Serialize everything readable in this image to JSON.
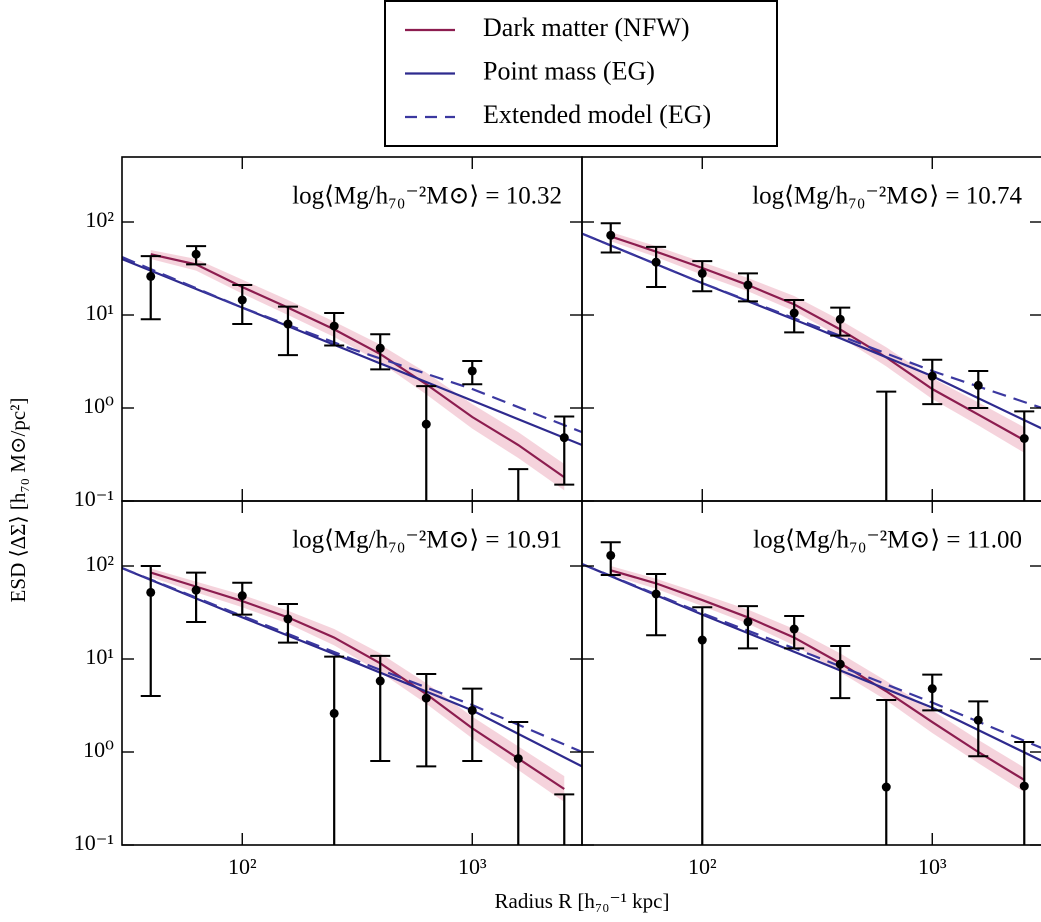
{
  "figure": {
    "xlabel": "Radius R [h₇₀⁻¹ kpc]",
    "ylabel": "ESD ⟨ΔΣ⟩ [h₇₀ M⊙/pc²]"
  },
  "chart_data": [
    {
      "type": "errorbar-model",
      "annotation": "log⟨Mg/h₇₀⁻²M⊙⟩ = 10.32",
      "xscale": "log",
      "yscale": "log",
      "xlim": [
        30,
        3000
      ],
      "ylim": [
        0.1,
        500
      ],
      "xticks": [
        100,
        1000
      ],
      "yticks": [
        {
          "value": 0.1,
          "label": "10⁻¹"
        },
        {
          "value": 1,
          "label": "10⁰"
        },
        {
          "value": 10,
          "label": "10¹"
        },
        {
          "value": 100,
          "label": "10²"
        }
      ],
      "series": [
        {
          "name": "Dark matter (NFW)",
          "color": "#8c1d4f",
          "band_color": "#f2c4d0",
          "x": [
            40,
            63,
            100,
            158,
            251,
            398,
            631,
            1000,
            1585,
            2512
          ],
          "values": [
            45,
            35,
            20,
            12,
            7,
            3.8,
            1.8,
            0.8,
            0.4,
            0.18
          ],
          "upper": [
            50,
            40,
            24,
            14.5,
            8.5,
            4.8,
            2.4,
            1.1,
            0.55,
            0.25
          ],
          "lower": [
            40,
            30,
            17,
            10,
            5.8,
            3.1,
            1.4,
            0.6,
            0.29,
            0.13
          ]
        },
        {
          "name": "Point mass (EG)",
          "color": "#2e2a8e",
          "x": [
            30,
            100,
            300,
            1000,
            3000
          ],
          "values": [
            40,
            12,
            4,
            1.2,
            0.4
          ]
        },
        {
          "name": "Extended model (EG)",
          "color": "#3b38a0",
          "dashed": true,
          "x": [
            30,
            100,
            300,
            1000,
            3000
          ],
          "values": [
            42,
            12,
            4.3,
            1.6,
            0.55
          ]
        }
      ],
      "points": {
        "color": "#000000",
        "x": [
          40,
          63,
          100,
          158,
          251,
          398,
          631,
          1000,
          1585,
          2512
        ],
        "values": [
          26,
          45,
          14.5,
          8,
          7.6,
          4.4,
          0.67,
          2.5,
          -0.3,
          0.48
        ],
        "errors": [
          17,
          10,
          6.5,
          4.3,
          2.9,
          1.8,
          1.05,
          0.7,
          0.52,
          0.33
        ]
      }
    },
    {
      "type": "errorbar-model",
      "annotation": "log⟨Mg/h₇₀⁻²M⊙⟩ = 10.74",
      "xscale": "log",
      "yscale": "log",
      "xlim": [
        30,
        3000
      ],
      "ylim": [
        0.1,
        500
      ],
      "xticks": [
        100,
        1000
      ],
      "yticks": [
        0.1,
        1,
        10,
        100
      ],
      "series": [
        {
          "color": "#8c1d4f",
          "band_color": "#f2c4d0",
          "x": [
            40,
            63,
            100,
            158,
            251,
            398,
            631,
            1000,
            1585,
            2512
          ],
          "values": [
            70,
            48,
            32,
            21,
            13,
            7,
            3.5,
            1.6,
            0.85,
            0.45
          ],
          "upper": [
            78,
            55,
            37,
            25,
            16,
            8.8,
            4.5,
            2.1,
            1.15,
            0.62
          ],
          "lower": [
            62,
            42,
            27,
            18,
            11,
            5.8,
            2.8,
            1.25,
            0.65,
            0.33
          ]
        },
        {
          "color": "#2e2a8e",
          "x": [
            30,
            100,
            300,
            1000,
            3000
          ],
          "values": [
            75,
            22,
            7.5,
            2.2,
            0.6
          ]
        },
        {
          "color": "#3b38a0",
          "dashed": true,
          "x": [
            30,
            100,
            300,
            1000,
            3000
          ],
          "values": [
            75,
            22,
            7.8,
            2.5,
            1.0
          ]
        }
      ],
      "points": {
        "color": "#000000",
        "x": [
          40,
          63,
          100,
          158,
          251,
          398,
          631,
          1000,
          1585,
          2512
        ],
        "values": [
          72,
          37,
          28,
          21,
          10.5,
          9,
          -0.5,
          2.2,
          1.75,
          0.47
        ],
        "errors": [
          25,
          17,
          10,
          7,
          4,
          3,
          2.0,
          1.1,
          0.75,
          0.45
        ]
      }
    },
    {
      "type": "errorbar-model",
      "annotation": "log⟨Mg/h₇₀⁻²M⊙⟩ = 10.91",
      "xscale": "log",
      "yscale": "log",
      "xlim": [
        30,
        3000
      ],
      "ylim": [
        0.1,
        500
      ],
      "xticks": [
        {
          "value": 100,
          "label": "10²"
        },
        {
          "value": 1000,
          "label": "10³"
        }
      ],
      "yticks": [
        {
          "value": 0.1,
          "label": "10⁻¹"
        },
        {
          "value": 1,
          "label": "10⁰"
        },
        {
          "value": 10,
          "label": "10¹"
        },
        {
          "value": 100,
          "label": "10²"
        }
      ],
      "series": [
        {
          "color": "#8c1d4f",
          "band_color": "#f2c4d0",
          "x": [
            40,
            63,
            100,
            158,
            251,
            398,
            631,
            1000,
            1585,
            2512
          ],
          "values": [
            85,
            60,
            42,
            28,
            17,
            9,
            4.2,
            1.8,
            0.85,
            0.4
          ],
          "upper": [
            94,
            68,
            49,
            33,
            21,
            11.5,
            5.5,
            2.4,
            1.15,
            0.55
          ],
          "lower": [
            76,
            52,
            36,
            24,
            14,
            7.2,
            3.3,
            1.4,
            0.64,
            0.29
          ]
        },
        {
          "color": "#2e2a8e",
          "x": [
            30,
            100,
            300,
            1000,
            3000
          ],
          "values": [
            95,
            28,
            9.5,
            2.8,
            0.7
          ]
        },
        {
          "color": "#3b38a0",
          "dashed": true,
          "x": [
            30,
            100,
            300,
            1000,
            3000
          ],
          "values": [
            95,
            29,
            10,
            3.2,
            1.0
          ]
        }
      ],
      "points": {
        "color": "#000000",
        "x": [
          40,
          63,
          100,
          158,
          251,
          398,
          631,
          1000,
          1585,
          2512
        ],
        "values": [
          52,
          55,
          48,
          27,
          2.6,
          5.8,
          3.8,
          2.8,
          0.85,
          -0.3
        ],
        "errors": [
          48,
          30,
          18,
          12,
          8,
          5,
          3.1,
          2,
          1.25,
          0.65
        ]
      }
    },
    {
      "type": "errorbar-model",
      "annotation": "log⟨Mg/h₇₀⁻²M⊙⟩ = 11.00",
      "xscale": "log",
      "yscale": "log",
      "xlim": [
        30,
        3000
      ],
      "ylim": [
        0.1,
        500
      ],
      "xticks": [
        {
          "value": 100,
          "label": "10²"
        },
        {
          "value": 1000,
          "label": "10³"
        }
      ],
      "yticks": [
        0.1,
        1,
        10,
        100
      ],
      "series": [
        {
          "color": "#8c1d4f",
          "band_color": "#f2c4d0",
          "x": [
            40,
            63,
            100,
            158,
            251,
            398,
            631,
            1000,
            1585,
            2512
          ],
          "values": [
            90,
            65,
            43,
            28,
            17,
            9,
            4.5,
            2.1,
            1.0,
            0.5
          ],
          "upper": [
            100,
            73,
            50,
            34,
            21,
            11.5,
            5.8,
            2.8,
            1.35,
            0.68
          ],
          "lower": [
            80,
            57,
            37,
            24,
            14,
            7.2,
            3.6,
            1.6,
            0.76,
            0.37
          ]
        },
        {
          "color": "#2e2a8e",
          "x": [
            30,
            100,
            300,
            1000,
            3000
          ],
          "values": [
            105,
            30,
            10,
            3,
            0.8
          ]
        },
        {
          "color": "#3b38a0",
          "dashed": true,
          "x": [
            30,
            100,
            300,
            1000,
            3000
          ],
          "values": [
            105,
            31,
            11,
            3.4,
            1.1
          ]
        }
      ],
      "points": {
        "color": "#000000",
        "x": [
          40,
          63,
          100,
          158,
          251,
          398,
          631,
          1000,
          1585,
          2512
        ],
        "values": [
          130,
          50,
          16,
          25,
          21,
          8.8,
          0.42,
          4.8,
          2.2,
          0.43
        ],
        "errors": [
          50,
          32,
          20,
          12,
          8,
          5,
          3.2,
          2,
          1.3,
          0.85
        ]
      }
    }
  ]
}
